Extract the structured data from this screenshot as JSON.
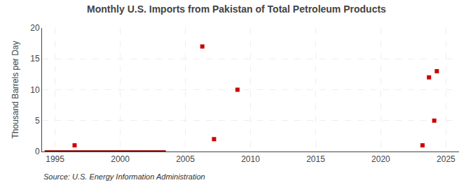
{
  "chart_data": {
    "type": "scatter",
    "title": "Monthly U.S. Imports from Pakistan of Total Petroleum Products",
    "ylabel": "Thousand Barrels per Day",
    "annotations": [
      "Source: U.S. Energy Information Administration"
    ],
    "series": [
      {
        "type": "line",
        "color": "#8b0000",
        "line_style": "solid",
        "x": [
          1994.2,
          2003.5
        ],
        "values": [
          0,
          0
        ]
      },
      {
        "type": "scatter",
        "color": "#cc0000",
        "marker": "square",
        "x": [
          1996.5,
          2006.3,
          2007.2,
          2009.0,
          2023.2,
          2023.7,
          2024.3,
          2024.1
        ],
        "values": [
          1,
          17,
          2,
          10,
          1,
          12,
          13,
          5
        ]
      }
    ],
    "xlim": [
      1994,
      2026
    ],
    "ylim": [
      0,
      20
    ],
    "xticks": [
      1995,
      2000,
      2005,
      2010,
      2015,
      2020,
      2025
    ],
    "yticks": [
      0,
      5,
      10,
      15,
      20
    ],
    "grid": true
  }
}
